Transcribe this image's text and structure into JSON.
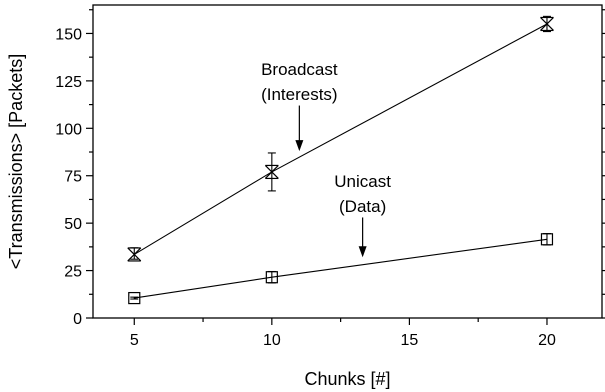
{
  "chart_data": {
    "type": "line",
    "xlabel": "Chunks [#]",
    "ylabel": "<Transmissions> [Packets]",
    "xlim": [
      3.5,
      22
    ],
    "ylim": [
      0,
      165
    ],
    "x_ticks": [
      5,
      10,
      15,
      20
    ],
    "y_ticks": [
      0,
      25,
      50,
      75,
      100,
      125,
      150
    ],
    "grid": false,
    "series": [
      {
        "marker": "x-hourglass",
        "points": [
          {
            "x": 5,
            "y": 33.5,
            "err_low": 31,
            "err_high": 37
          },
          {
            "x": 10,
            "y": 77,
            "err_low": 67,
            "err_high": 87
          },
          {
            "x": 20,
            "y": 155,
            "err_low": 151,
            "err_high": 159
          }
        ]
      },
      {
        "marker": "square",
        "points": [
          {
            "x": 5,
            "y": 10.5,
            "err_low": 10,
            "err_high": 11
          },
          {
            "x": 10,
            "y": 21.5,
            "err_low": 18.5,
            "err_high": 24.5
          },
          {
            "x": 20,
            "y": 41.5,
            "err_low": 38.5,
            "err_high": 44.5
          }
        ]
      }
    ],
    "annotations": [
      {
        "lines": [
          "Broadcast",
          "(Interests)"
        ],
        "text_x": 11,
        "text_y": 128,
        "arrow_from_y": 112,
        "arrow_to_y": 88,
        "arrow_x": 11
      },
      {
        "lines": [
          "Unicast",
          "(Data)"
        ],
        "text_x": 13.3,
        "text_y": 69,
        "arrow_from_y": 53,
        "arrow_to_y": 32,
        "arrow_x": 13.3
      }
    ]
  }
}
